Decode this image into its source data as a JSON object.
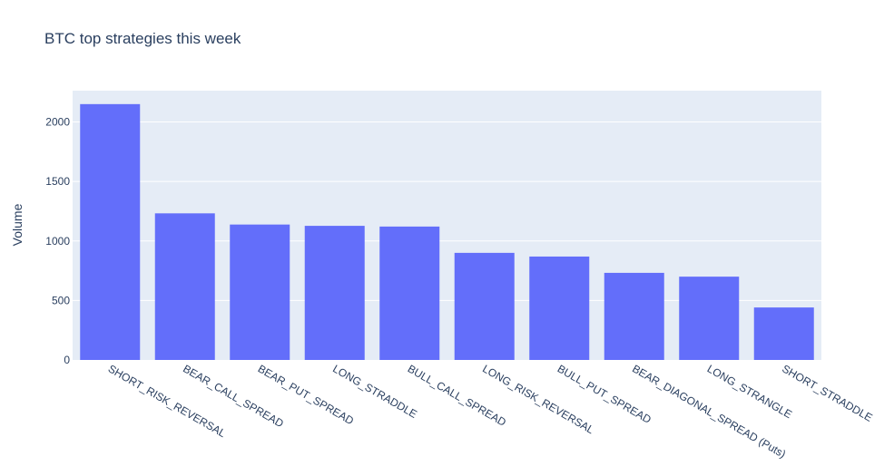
{
  "chart_data": {
    "type": "bar",
    "title": "BTC top strategies this week",
    "xlabel": "",
    "ylabel": "Volume",
    "categories": [
      "SHORT_RISK_REVERSAL",
      "BEAR_CALL_SPREAD",
      "BEAR_PUT_SPREAD",
      "LONG_STRADDLE",
      "BULL_CALL_SPREAD",
      "LONG_RISK_REVERSAL",
      "BULL_PUT_SPREAD",
      "BEAR_DIAGONAL_SPREAD (Puts)",
      "LONG_STRANGLE",
      "SHORT_STRADDLE"
    ],
    "values": [
      2150,
      1232,
      1138,
      1127,
      1121,
      900,
      869,
      732,
      700,
      441
    ],
    "ylim": [
      0,
      2263
    ],
    "yticks": [
      0,
      500,
      1000,
      1500,
      2000
    ],
    "grid": true,
    "colors": {
      "bar": "#636efa",
      "plot_bg": "#e5ecf6",
      "grid": "#ffffff",
      "text": "#2a3f5f"
    }
  }
}
